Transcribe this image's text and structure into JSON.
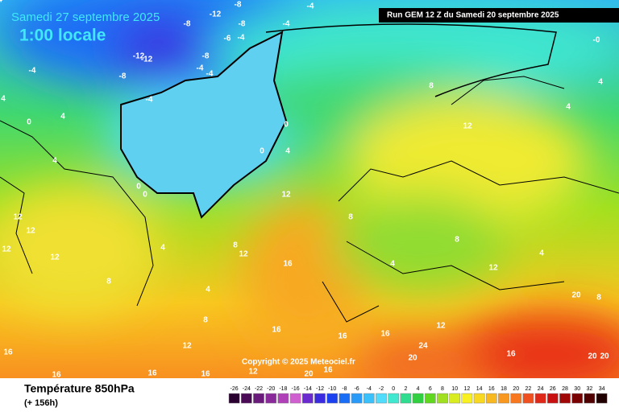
{
  "header": {
    "date": "Samedi 27 septembre 2025",
    "time": "1:00 locale",
    "run": "Run GEM 12 Z du Samedi 20 septembre 2025"
  },
  "footer": {
    "title": "Température 850hPa",
    "lead": "(+ 156h)",
    "copyright": "Copyright © 2025 Meteociel.fr"
  },
  "scale": {
    "values": [
      -26,
      -24,
      -22,
      -20,
      -18,
      -16,
      -14,
      -12,
      -10,
      -8,
      -6,
      -4,
      -2,
      0,
      2,
      4,
      6,
      8,
      10,
      12,
      14,
      16,
      18,
      20,
      22,
      24,
      26,
      28,
      30,
      32,
      34
    ],
    "colors": [
      "#2a0030",
      "#4a0a55",
      "#6a1a7a",
      "#8a2a9a",
      "#b040b8",
      "#d060d0",
      "#6a2ad0",
      "#3a2ae0",
      "#1a40f0",
      "#1a6ef5",
      "#2a9af8",
      "#3ac0fa",
      "#50dcfa",
      "#40e8d0",
      "#30dc90",
      "#30d040",
      "#60d820",
      "#a0e020",
      "#d8ec20",
      "#f8f020",
      "#f8d820",
      "#f8b820",
      "#f89820",
      "#f87820",
      "#f05020",
      "#e02818",
      "#c81010",
      "#a00808",
      "#780000",
      "#500000",
      "#200000"
    ]
  },
  "contour_labels": [
    -12,
    -8,
    -4,
    -8,
    -6,
    -4,
    -8,
    -8,
    -4,
    -4,
    -12,
    -12,
    -8,
    -4,
    -4,
    -4,
    {
      "value": 0,
      "label": "-0"
    },
    0,
    4,
    0,
    0,
    4,
    4,
    0,
    0,
    12,
    12,
    8,
    4,
    4,
    12,
    12,
    12,
    12,
    8,
    4,
    8,
    12,
    16,
    8,
    4,
    8,
    12,
    4,
    4,
    8,
    12,
    16,
    16,
    16,
    12,
    16,
    16,
    16,
    16,
    12,
    20,
    16,
    20,
    24,
    16,
    20,
    20,
    20,
    8,
    4,
    4
  ]
}
